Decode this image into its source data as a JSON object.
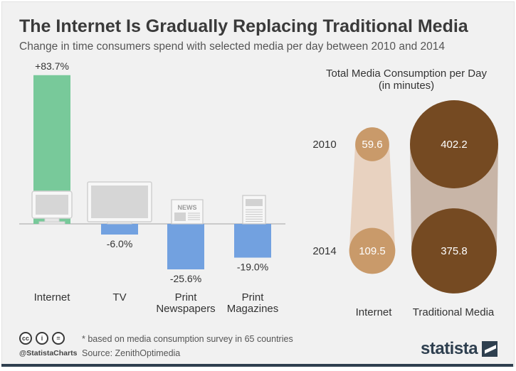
{
  "title": "The Internet Is Gradually Replacing Traditional Media",
  "subtitle": "Change in time consumers spend with selected media per day between 2010 and 2014",
  "chart_data": [
    {
      "type": "bar",
      "categories": [
        "Internet",
        "TV",
        "Print\nNewspapers",
        "Print\nMagazines"
      ],
      "values": [
        83.7,
        -6.0,
        -25.6,
        -19.0
      ],
      "labels": [
        "+83.7%",
        "-6.0%",
        "-25.6%",
        "-19.0%"
      ],
      "title": "",
      "xlabel": "",
      "ylabel": "",
      "ylim": [
        -35,
        90
      ],
      "grid": false,
      "colors": {
        "positive": "#78c99a",
        "negative": "#72a1e0"
      }
    },
    {
      "type": "bubble",
      "title": "Total Media Consumption per Day\n(in minutes)",
      "years": [
        "2010",
        "2014"
      ],
      "series": [
        {
          "name": "Internet",
          "values": [
            59.6,
            109.5
          ],
          "color": "#c99a6a",
          "link_color": "#e8d2c0"
        },
        {
          "name": "Traditional Media",
          "values": [
            402.2,
            375.8
          ],
          "color": "#754a22",
          "link_color": "#c8b5a7"
        }
      ]
    }
  ],
  "footer": {
    "note": "* based on media consumption survey in 65 countries",
    "source": "Source: ZenithOptimedia",
    "handle": "@StatistaCharts",
    "brand": "statista",
    "icons": [
      "cc-icon",
      "by-icon",
      "nd-icon"
    ]
  }
}
